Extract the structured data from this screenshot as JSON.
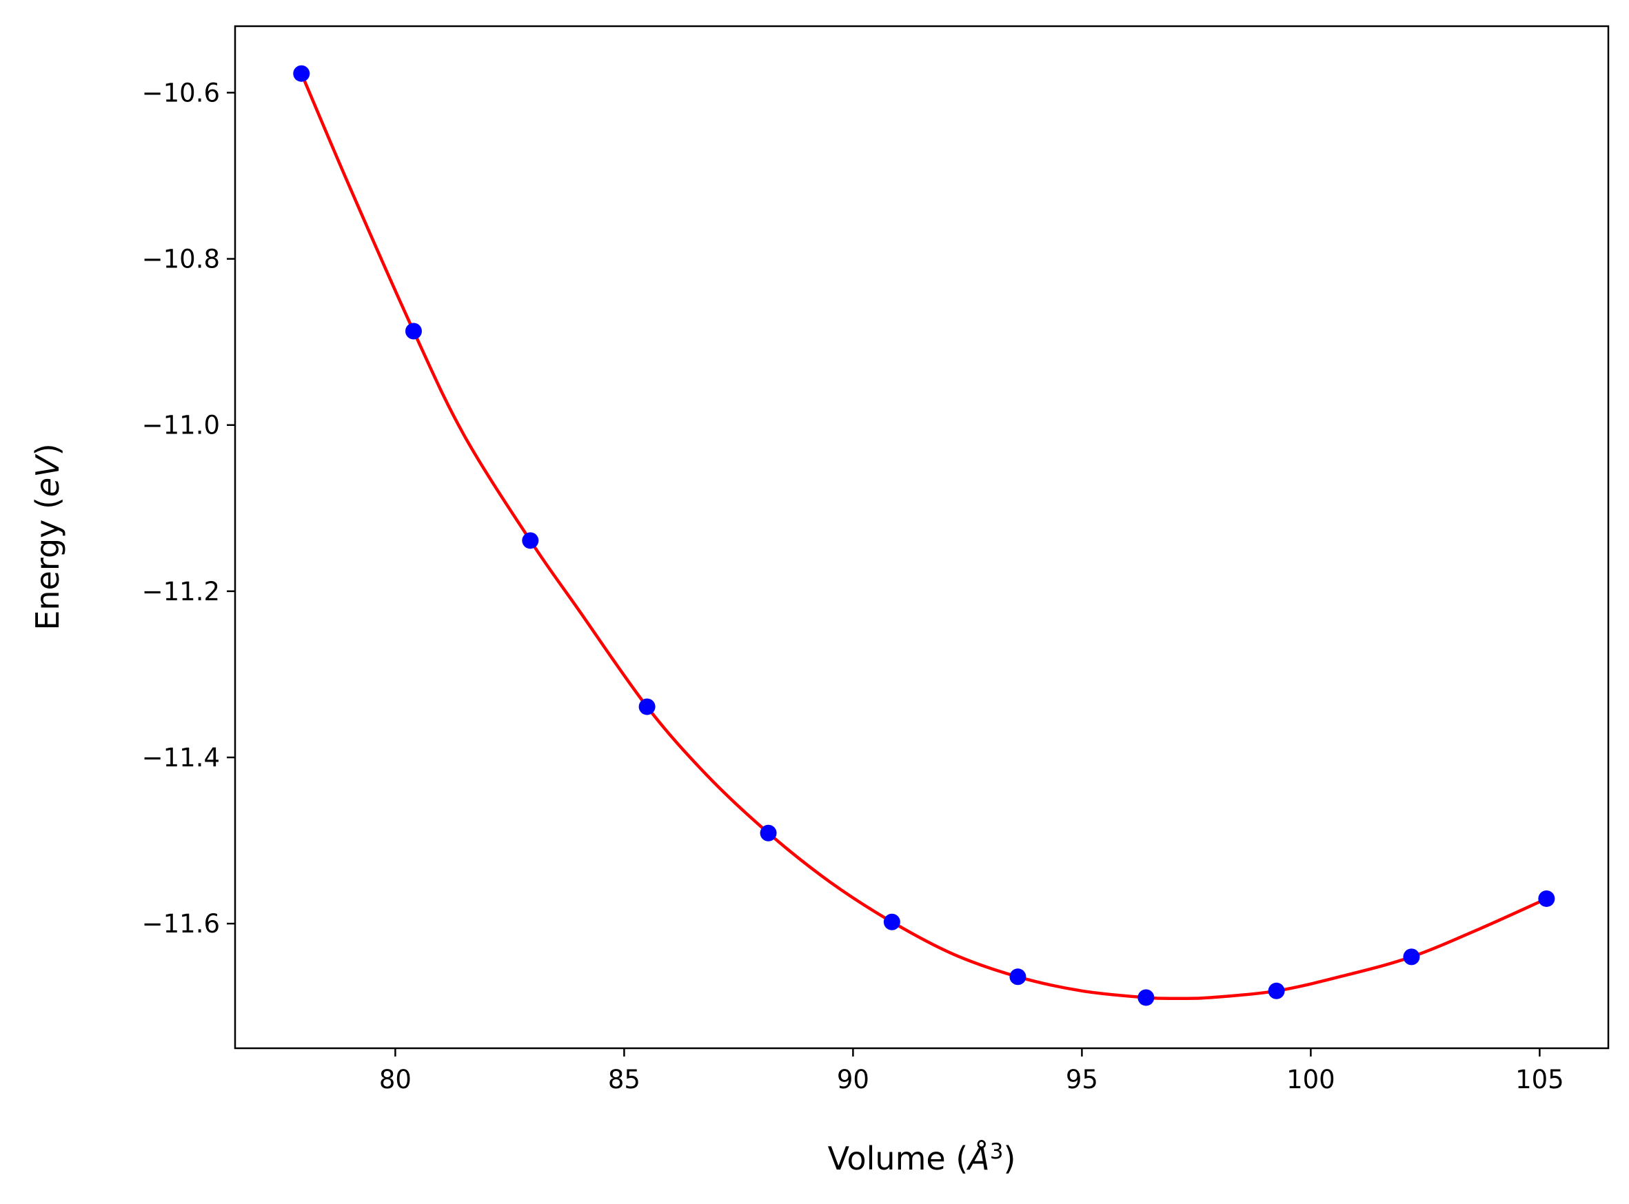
{
  "chart_data": {
    "type": "scatter",
    "xlabel": {
      "prefix": "Volume (",
      "unit": "Å",
      "sup": "3",
      "suffix": ")"
    },
    "ylabel": {
      "prefix": "Energy (",
      "unit": "eV",
      "suffix": ")"
    },
    "xlim": [
      76.5,
      106.5
    ],
    "ylim": [
      -11.75,
      -10.52
    ],
    "x_ticks": [
      80,
      85,
      90,
      95,
      100,
      105
    ],
    "x_tick_labels": [
      "80",
      "85",
      "90",
      "95",
      "100",
      "105"
    ],
    "y_ticks": [
      -10.6,
      -10.8,
      -11.0,
      -11.2,
      -11.4,
      -11.6
    ],
    "y_tick_labels": [
      "−10.6",
      "−10.8",
      "−11.0",
      "−11.2",
      "−11.4",
      "−11.6"
    ],
    "grid": false,
    "series": [
      {
        "kind": "points",
        "color": "#0000ff",
        "x": [
          77.95,
          80.4,
          82.95,
          85.5,
          88.15,
          90.85,
          93.6,
          96.4,
          99.25,
          102.2,
          105.15
        ],
        "y": [
          -10.577,
          -10.887,
          -11.139,
          -11.339,
          -11.491,
          -11.598,
          -11.664,
          -11.689,
          -11.681,
          -11.64,
          -11.57
        ]
      },
      {
        "kind": "fit-curve",
        "color": "#ff0000",
        "x": [
          77.95,
          79.0,
          80.4,
          81.5,
          82.95,
          84.0,
          85.5,
          86.8,
          88.15,
          89.5,
          90.85,
          92.2,
          93.6,
          95.0,
          96.4,
          97.1,
          97.8,
          99.25,
          100.7,
          102.2,
          103.7,
          105.15
        ],
        "y": [
          -10.577,
          -10.713,
          -10.887,
          -11.012,
          -11.139,
          -11.222,
          -11.339,
          -11.421,
          -11.491,
          -11.55,
          -11.598,
          -11.637,
          -11.664,
          -11.681,
          -11.689,
          -11.69,
          -11.689,
          -11.681,
          -11.663,
          -11.64,
          -11.606,
          -11.57
        ]
      }
    ]
  }
}
